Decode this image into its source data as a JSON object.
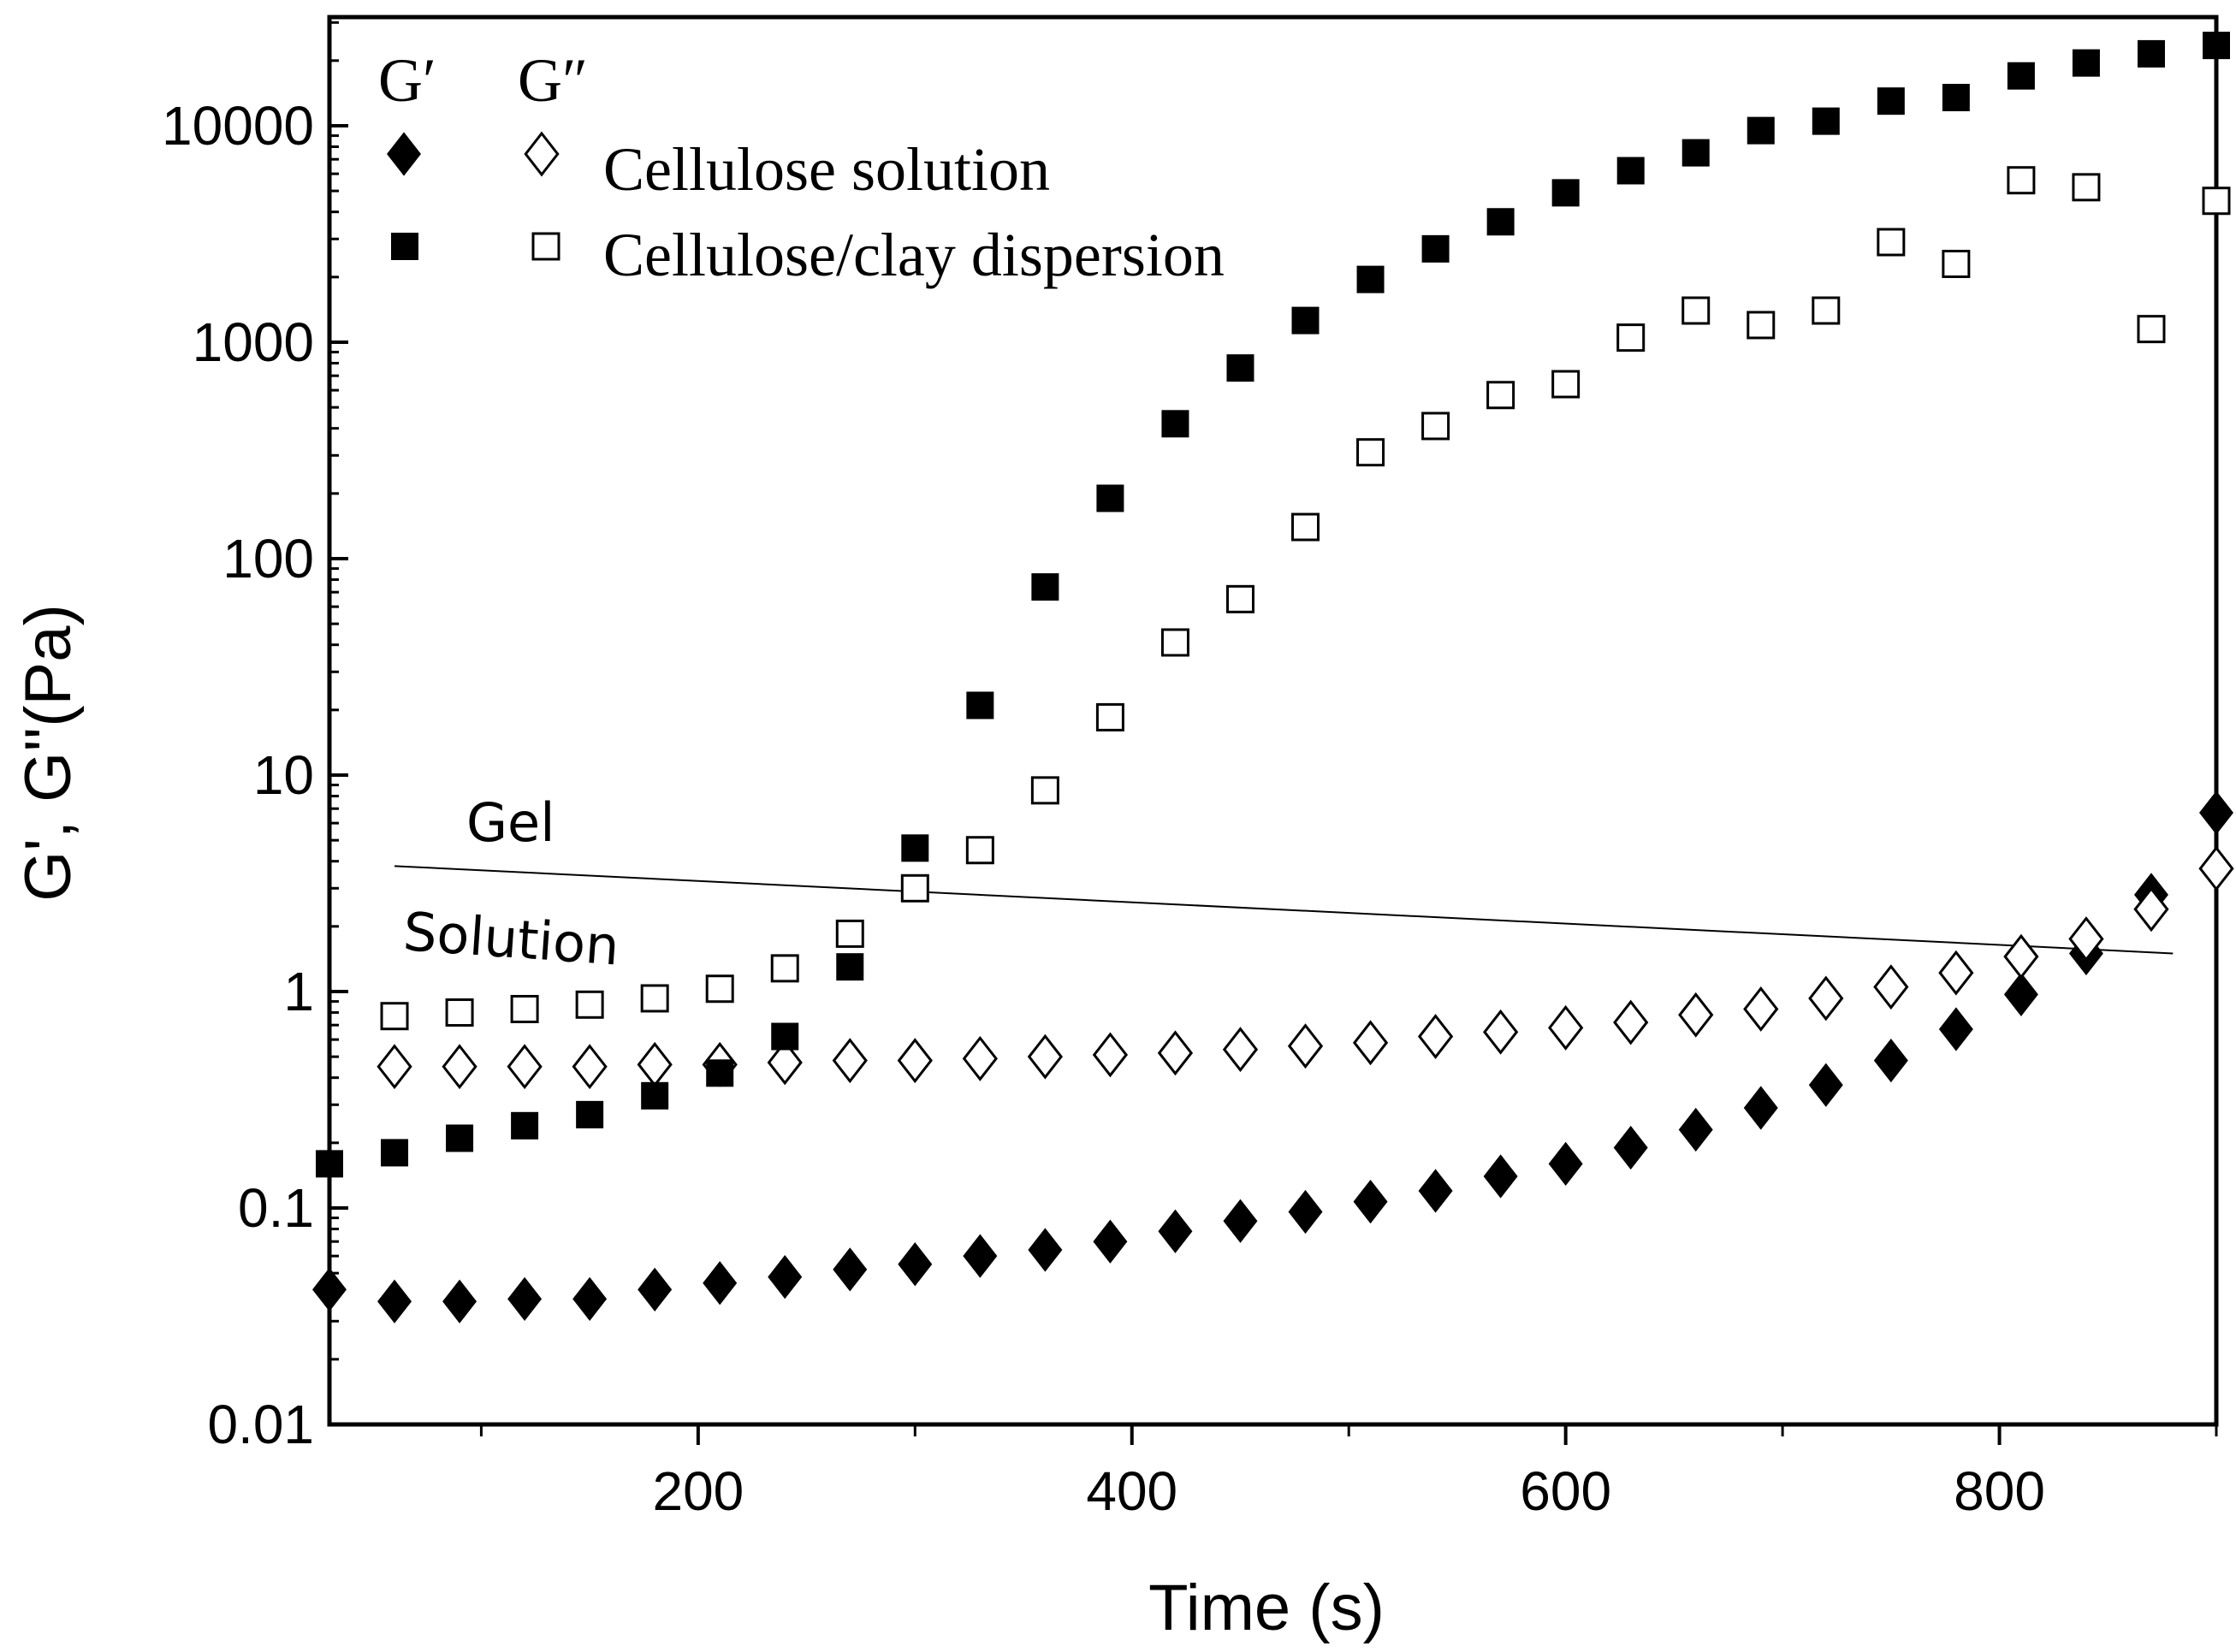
{
  "chart_data": {
    "type": "scatter",
    "title": "",
    "xlabel": "Time (s)",
    "ylabel": "G', G''(Pa)",
    "xlim": [
      30,
      900
    ],
    "ylim": [
      0.01,
      30000
    ],
    "yscale": "log",
    "x_ticks": [
      200,
      400,
      600,
      800
    ],
    "x_minor_ticks": [
      100,
      300,
      500,
      700,
      900
    ],
    "y_ticks": [
      {
        "value": 0.01,
        "label": "0.01"
      },
      {
        "value": 0.1,
        "label": "0.1"
      },
      {
        "value": 1,
        "label": "1"
      },
      {
        "value": 10,
        "label": "10"
      },
      {
        "value": 100,
        "label": "100"
      },
      {
        "value": 1000,
        "label": "1000"
      },
      {
        "value": 10000,
        "label": "10000"
      }
    ],
    "legend": {
      "position": "top-left",
      "header_gp": "G′",
      "header_gpp": "G″",
      "entries": [
        "Cellulose solution",
        "Cellulose/clay dispersion"
      ]
    },
    "annotations": {
      "upper": "Gel",
      "lower": "Solution",
      "boundary_line": {
        "x": [
          60,
          880
        ],
        "y": [
          3.8,
          1.5
        ]
      }
    },
    "series": [
      {
        "name": "Cellulose solution G′",
        "marker": "filled-diamond",
        "x": [
          30,
          60,
          90,
          120,
          150,
          180,
          210,
          240,
          270,
          300,
          330,
          360,
          390,
          420,
          450,
          480,
          510,
          540,
          570,
          600,
          630,
          660,
          690,
          720,
          750,
          780,
          810,
          840,
          870,
          900
        ],
        "y": [
          0.042,
          0.037,
          0.037,
          0.038,
          0.038,
          0.042,
          0.045,
          0.048,
          0.052,
          0.055,
          0.06,
          0.064,
          0.07,
          0.078,
          0.087,
          0.096,
          0.107,
          0.12,
          0.14,
          0.16,
          0.19,
          0.23,
          0.29,
          0.37,
          0.48,
          0.67,
          0.97,
          1.5,
          2.8,
          6.7
        ]
      },
      {
        "name": "Cellulose solution G″",
        "marker": "open-diamond",
        "x": [
          60,
          90,
          120,
          150,
          180,
          210,
          240,
          270,
          300,
          330,
          360,
          390,
          420,
          450,
          480,
          510,
          540,
          570,
          600,
          630,
          660,
          690,
          720,
          750,
          780,
          810,
          840,
          870,
          900
        ],
        "y": [
          0.45,
          0.45,
          0.45,
          0.45,
          0.46,
          0.46,
          0.47,
          0.48,
          0.48,
          0.49,
          0.5,
          0.51,
          0.52,
          0.54,
          0.56,
          0.58,
          0.62,
          0.65,
          0.68,
          0.72,
          0.78,
          0.83,
          0.93,
          1.05,
          1.22,
          1.45,
          1.75,
          2.4,
          3.7
        ]
      },
      {
        "name": "Cellulose/clay dispersion G′",
        "marker": "filled-square",
        "x": [
          30,
          60,
          90,
          120,
          150,
          180,
          210,
          240,
          270,
          300,
          330,
          360,
          390,
          420,
          450,
          480,
          510,
          540,
          570,
          600,
          630,
          660,
          690,
          720,
          750,
          780,
          810,
          840,
          870,
          900
        ],
        "y": [
          0.16,
          0.18,
          0.21,
          0.24,
          0.27,
          0.33,
          0.42,
          0.62,
          1.3,
          4.6,
          21,
          74,
          190,
          420,
          760,
          1260,
          1950,
          2700,
          3600,
          4900,
          6200,
          7500,
          9500,
          10500,
          13000,
          13500,
          17000,
          19500,
          21500,
          23500
        ]
      },
      {
        "name": "Cellulose/clay dispersion G″",
        "marker": "open-square",
        "x": [
          60,
          90,
          120,
          150,
          180,
          210,
          240,
          270,
          300,
          330,
          360,
          390,
          420,
          450,
          480,
          510,
          540,
          570,
          600,
          630,
          660,
          690,
          720,
          750,
          780,
          810,
          840,
          870,
          900
        ],
        "y": [
          0.77,
          0.8,
          0.83,
          0.87,
          0.93,
          1.03,
          1.28,
          1.85,
          3.0,
          4.5,
          8.5,
          18.5,
          41,
          65,
          140,
          310,
          410,
          570,
          640,
          1050,
          1400,
          1200,
          1400,
          2900,
          2300,
          5600,
          5200,
          1150,
          4500
        ]
      }
    ]
  }
}
